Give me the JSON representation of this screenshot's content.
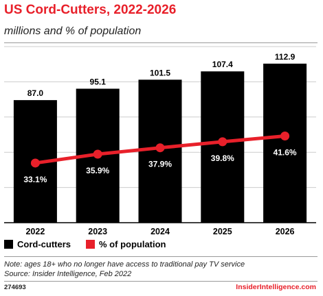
{
  "title": "US Cord-Cutters, 2022-2026",
  "subtitle": "millions and % of population",
  "colors": {
    "bar": "#000000",
    "line": "#e8202a",
    "title": "#e8202a",
    "grid": "#cccccc"
  },
  "legend": [
    {
      "label": "Cord-cutters",
      "color": "#000000"
    },
    {
      "label": "% of population",
      "color": "#e8202a"
    }
  ],
  "chart_data": {
    "type": "bar",
    "categories": [
      "2022",
      "2023",
      "2024",
      "2025",
      "2026"
    ],
    "series": [
      {
        "name": "Cord-cutters",
        "type": "bar",
        "values": [
          87.0,
          95.1,
          101.5,
          107.4,
          112.9
        ],
        "labels": [
          "87.0",
          "95.1",
          "101.5",
          "107.4",
          "112.9"
        ]
      },
      {
        "name": "% of population",
        "type": "line",
        "values": [
          33.1,
          35.9,
          37.9,
          39.8,
          41.6
        ],
        "labels": [
          "33.1%",
          "35.9%",
          "37.9%",
          "39.8%",
          "41.6%"
        ]
      }
    ],
    "ylim": [
      0,
      125
    ],
    "grid": true,
    "legend_position": "bottom-left"
  },
  "footer": {
    "note": "Note: ages 18+ who no longer have access to traditional pay TV service",
    "source": "Source: Insider Intelligence, Feb 2022",
    "code": "274693",
    "brand": "InsiderIntelligence.com"
  }
}
